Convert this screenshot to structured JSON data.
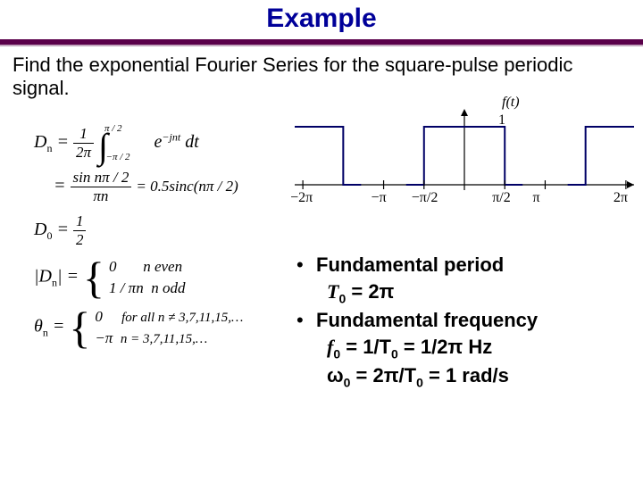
{
  "title": "Example",
  "prompt": "Find the exponential Fourier Series for the square-pulse periodic signal.",
  "equations": {
    "Dn_lhs": "D",
    "Dn_sub": "n",
    "eq_sign": "=",
    "frac_1_2pi_num": "1",
    "frac_1_2pi_den": "2π",
    "int_upper_num": "π / 2",
    "int_lower": "−π / 2",
    "integrand": "e",
    "integrand_exp": "−jnt",
    "dt": "dt",
    "line2_num": "sin nπ / 2",
    "line2_den": "πn",
    "line2_rhs": "= 0.5sinc(nπ / 2)",
    "D0_lhs": "D",
    "D0_sub": "0",
    "half_num": "1",
    "half_den": "2",
    "abs_lhs": "|D",
    "abs_sub": "n",
    "abs_close": "| =",
    "case1_val": "0",
    "case1_cond": "n even",
    "case2_val": "1 / πn",
    "case2_cond": "n odd",
    "theta_lhs": "θ",
    "theta_sub": "n",
    "theta_eq": "=",
    "theta_case1_val": "0",
    "theta_case1_cond": "for all n ≠ 3,7,11,15,…",
    "theta_case2_val": "−π",
    "theta_case2_cond": "n = 3,7,11,15,…"
  },
  "chart": {
    "type": "square-pulse",
    "axis_color": "#000000",
    "pulse_color": "#000066",
    "pulse_stroke_width": 2,
    "background_color": "#ffffff",
    "ft_label": "f(t)",
    "amplitude_label": "1",
    "x_ticks": [
      "−2π",
      "−π",
      "−π/2",
      "π/2",
      "π",
      "2π"
    ],
    "x_min": -6.6,
    "x_max": 6.6,
    "period": 6.2832,
    "pulse_half_width": 1.5708,
    "amplitude": 1
  },
  "bullets": {
    "b1_head": "Fundamental period",
    "b1_line": "T₀ = 2π",
    "b1_T": "T",
    "b1_sub": "0",
    "b1_eq": " = 2π",
    "b2_head": "Fundamental frequency",
    "b2_line1_f": "f",
    "b2_line1_sub": "0",
    "b2_line1_rest": " = 1/T",
    "b2_line1_rest2": " = 1/2π Hz",
    "b2_line2_w": "ω",
    "b2_line2_sub": "0",
    "b2_line2_rest": " = 2π/T",
    "b2_line2_rest2": " = 1 rad/s"
  }
}
